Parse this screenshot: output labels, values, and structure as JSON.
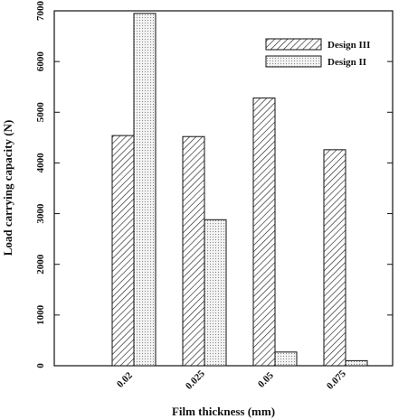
{
  "chart_data": {
    "type": "bar",
    "xlabel": "Film thickness (mm)",
    "ylabel": "Load carrying capacity (N)",
    "categories": [
      "0.02",
      "0.025",
      "0.05",
      "0.075"
    ],
    "ylim": [
      0,
      7000
    ],
    "yticks": [
      0,
      1000,
      2000,
      3000,
      4000,
      5000,
      6000,
      7000
    ],
    "series": [
      {
        "name": "Design III",
        "values": [
          4540,
          4520,
          5280,
          4260
        ],
        "pattern": "diagonal-hatch"
      },
      {
        "name": "Design II",
        "values": [
          6950,
          2880,
          270,
          100
        ],
        "pattern": "dotted"
      }
    ],
    "legend_position": "top-right",
    "grid": false
  },
  "colors": {
    "ink": "#111111",
    "background": "#ffffff"
  }
}
